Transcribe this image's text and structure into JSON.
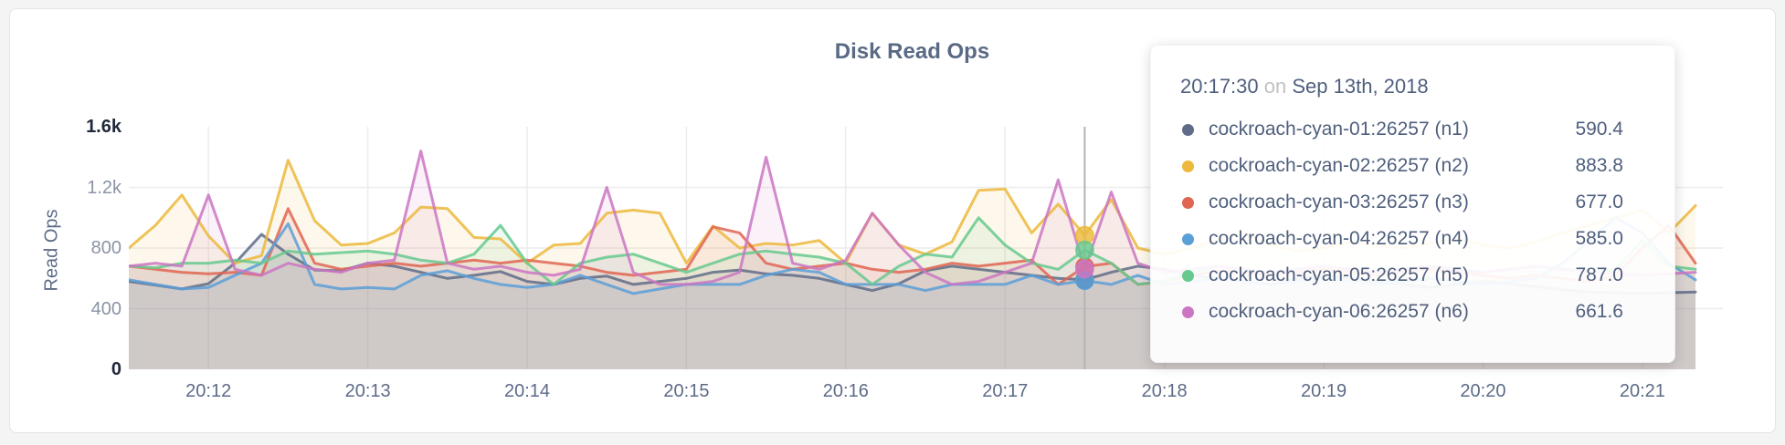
{
  "page": {
    "background": "#f4f4f5"
  },
  "header": {
    "title": "Disk Read Ops"
  },
  "tooltip": {
    "time": "20:17:30",
    "conjunction": "on",
    "date": "Sep 13th, 2018",
    "rows": [
      {
        "label": "cockroach-cyan-01:26257 (n1)",
        "value": "590.4"
      },
      {
        "label": "cockroach-cyan-02:26257 (n2)",
        "value": "883.8"
      },
      {
        "label": "cockroach-cyan-03:26257 (n3)",
        "value": "677.0"
      },
      {
        "label": "cockroach-cyan-04:26257 (n4)",
        "value": "585.0"
      },
      {
        "label": "cockroach-cyan-05:26257 (n5)",
        "value": "787.0"
      },
      {
        "label": "cockroach-cyan-06:26257 (n6)",
        "value": "661.6"
      }
    ]
  },
  "chart_data": {
    "type": "line",
    "title": "Disk Read Ops",
    "xlabel": "",
    "ylabel": "Read Ops",
    "ylim": [
      0,
      1600
    ],
    "grid": true,
    "legend_position": "tooltip",
    "x_start": "20:11:30",
    "x_interval_seconds": 10,
    "points_per_series": 60,
    "hover_index": 36,
    "hover_time": "20:17:30",
    "crosshair_color": "#b3b3b3",
    "y_ticks": [
      {
        "label": "1.6k",
        "value": 1600,
        "emphasis": true
      },
      {
        "label": "1.2k",
        "value": 1200,
        "emphasis": false
      },
      {
        "label": "800",
        "value": 800,
        "emphasis": false
      },
      {
        "label": "400",
        "value": 400,
        "emphasis": false
      },
      {
        "label": "0",
        "value": 0,
        "emphasis": true
      }
    ],
    "x_ticks": [
      {
        "label": "20:12",
        "index": 3
      },
      {
        "label": "20:13",
        "index": 9
      },
      {
        "label": "20:14",
        "index": 15
      },
      {
        "label": "20:15",
        "index": 21
      },
      {
        "label": "20:16",
        "index": 27
      },
      {
        "label": "20:17",
        "index": 33
      },
      {
        "label": "20:18",
        "index": 39
      },
      {
        "label": "20:19",
        "index": 45
      },
      {
        "label": "20:20",
        "index": 51
      },
      {
        "label": "20:21",
        "index": 57
      }
    ],
    "series": [
      {
        "name": "cockroach-cyan-01:26257 (n1)",
        "color": "#5f6c87",
        "values": [
          580,
          555,
          530,
          565,
          700,
          890,
          760,
          655,
          650,
          700,
          680,
          640,
          600,
          620,
          645,
          580,
          560,
          600,
          615,
          560,
          580,
          600,
          640,
          655,
          630,
          620,
          600,
          560,
          520,
          565,
          650,
          680,
          660,
          640,
          620,
          600,
          590.4,
          640,
          680,
          660,
          620,
          600,
          580,
          560,
          600,
          620,
          600,
          580,
          560,
          540,
          560,
          580,
          565,
          545,
          525,
          510,
          505,
          500,
          505,
          510
        ]
      },
      {
        "name": "cockroach-cyan-02:26257 (n2)",
        "color": "#ecb93c",
        "values": [
          800,
          950,
          1150,
          880,
          700,
          750,
          1380,
          980,
          820,
          830,
          900,
          1070,
          1060,
          870,
          860,
          700,
          820,
          830,
          1030,
          1050,
          1030,
          700,
          945,
          800,
          830,
          820,
          850,
          700,
          1030,
          820,
          760,
          840,
          1180,
          1190,
          900,
          1090,
          883.8,
          1120,
          800,
          760,
          800,
          850,
          900,
          820,
          780,
          800,
          840,
          820,
          800,
          830,
          860,
          820,
          800,
          840,
          900,
          950,
          1000,
          1050,
          900,
          1080
        ]
      },
      {
        "name": "cockroach-cyan-03:26257 (n3)",
        "color": "#e06552",
        "values": [
          680,
          660,
          640,
          630,
          640,
          620,
          1060,
          700,
          660,
          680,
          700,
          680,
          700,
          720,
          700,
          720,
          700,
          680,
          640,
          620,
          640,
          660,
          940,
          900,
          700,
          660,
          680,
          700,
          660,
          640,
          660,
          700,
          680,
          700,
          720,
          560,
          677,
          700,
          560,
          580,
          620,
          650,
          640,
          620,
          640,
          660,
          640,
          620,
          640,
          660,
          640,
          620,
          600,
          620,
          600,
          580,
          620,
          800,
          950,
          700
        ]
      },
      {
        "name": "cockroach-cyan-04:26257 (n4)",
        "color": "#5b9fd7",
        "values": [
          590,
          560,
          530,
          540,
          620,
          700,
          960,
          560,
          530,
          540,
          530,
          620,
          650,
          600,
          560,
          540,
          560,
          620,
          560,
          500,
          530,
          560,
          560,
          560,
          620,
          660,
          640,
          560,
          560,
          560,
          520,
          560,
          560,
          560,
          620,
          560,
          585,
          560,
          620,
          560,
          580,
          600,
          580,
          560,
          580,
          600,
          580,
          560,
          580,
          600,
          580,
          560,
          580,
          600,
          700,
          850,
          1000,
          900,
          700,
          590
        ]
      },
      {
        "name": "cockroach-cyan-05:26257 (n5)",
        "color": "#66c98e",
        "values": [
          680,
          670,
          700,
          700,
          720,
          700,
          780,
          760,
          770,
          780,
          760,
          720,
          700,
          760,
          950,
          700,
          560,
          700,
          740,
          760,
          700,
          640,
          700,
          760,
          780,
          760,
          740,
          700,
          560,
          680,
          760,
          740,
          1000,
          820,
          700,
          660,
          787,
          700,
          560,
          580,
          640,
          680,
          660,
          640,
          660,
          680,
          660,
          640,
          660,
          680,
          660,
          640,
          660,
          680,
          660,
          640,
          660,
          850,
          680,
          660
        ]
      },
      {
        "name": "cockroach-cyan-06:26257 (n6)",
        "color": "#cb76c3",
        "values": [
          680,
          700,
          680,
          1150,
          660,
          620,
          700,
          660,
          640,
          700,
          720,
          1440,
          700,
          660,
          680,
          640,
          620,
          660,
          1200,
          640,
          560,
          560,
          580,
          640,
          1400,
          700,
          660,
          720,
          1030,
          820,
          640,
          560,
          580,
          640,
          700,
          1250,
          661.6,
          1170,
          700,
          640,
          660,
          680,
          660,
          640,
          660,
          680,
          660,
          640,
          660,
          680,
          660,
          640,
          660,
          680,
          660,
          640,
          630,
          620,
          630,
          640
        ]
      }
    ]
  }
}
